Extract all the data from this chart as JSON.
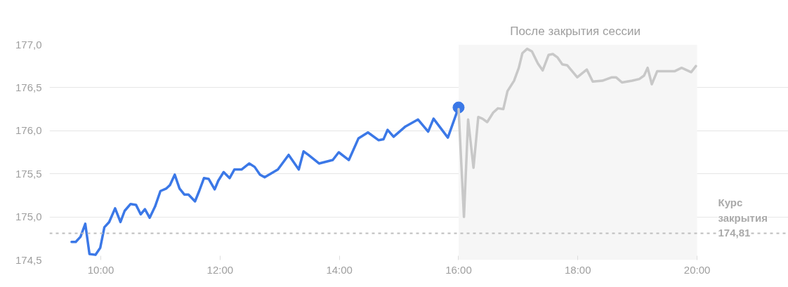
{
  "chart_data": {
    "type": "line",
    "xlim": [
      9.14,
      21.53
    ],
    "ylim": [
      174.5,
      177.0
    ],
    "xticks": [
      {
        "value": 10,
        "label": "10:00"
      },
      {
        "value": 12,
        "label": "12:00"
      },
      {
        "value": 14,
        "label": "14:00"
      },
      {
        "value": 16,
        "label": "16:00"
      },
      {
        "value": 18,
        "label": "18:00"
      },
      {
        "value": 20,
        "label": "20:00"
      }
    ],
    "yticks": [
      {
        "value": 174.5,
        "label": "174,5"
      },
      {
        "value": 175.0,
        "label": "175,0"
      },
      {
        "value": 175.5,
        "label": "175,5"
      },
      {
        "value": 176.0,
        "label": "176,0"
      },
      {
        "value": 176.5,
        "label": "176,5"
      },
      {
        "value": 177.0,
        "label": "177,0"
      }
    ],
    "grid": "y",
    "series": [
      {
        "color": "#3b78e7",
        "x": [
          9.51,
          9.58,
          9.66,
          9.74,
          9.81,
          9.91,
          9.99,
          10.06,
          10.14,
          10.24,
          10.33,
          10.4,
          10.5,
          10.59,
          10.67,
          10.74,
          10.82,
          10.91,
          11.0,
          11.1,
          11.16,
          11.24,
          11.32,
          11.4,
          11.47,
          11.58,
          11.65,
          11.73,
          11.81,
          11.91,
          11.97,
          12.06,
          12.16,
          12.24,
          12.36,
          12.49,
          12.58,
          12.67,
          12.75,
          12.97,
          13.15,
          13.32,
          13.4,
          13.48,
          13.66,
          13.89,
          13.99,
          14.16,
          14.32,
          14.48,
          14.66,
          14.74,
          14.81,
          14.91,
          15.11,
          15.32,
          15.49,
          15.58,
          15.82,
          16.0
        ],
        "values": [
          174.71,
          174.71,
          174.77,
          174.92,
          174.57,
          174.56,
          174.64,
          174.88,
          174.94,
          175.1,
          174.94,
          175.07,
          175.15,
          175.14,
          175.03,
          175.09,
          174.99,
          175.12,
          175.3,
          175.33,
          175.37,
          175.49,
          175.33,
          175.26,
          175.26,
          175.18,
          175.3,
          175.45,
          175.44,
          175.32,
          175.42,
          175.52,
          175.45,
          175.55,
          175.55,
          175.62,
          175.58,
          175.49,
          175.46,
          175.55,
          175.72,
          175.55,
          175.76,
          175.72,
          175.62,
          175.66,
          175.75,
          175.66,
          175.91,
          175.98,
          175.89,
          175.9,
          176.01,
          175.93,
          176.05,
          176.13,
          175.99,
          176.14,
          175.92,
          176.27
        ]
      },
      {
        "type": "scatter",
        "color": "#3b78e7",
        "marker": "circle",
        "x": [
          16.0
        ],
        "values": [
          176.27
        ]
      },
      {
        "color": "#c8c8c8",
        "x": [
          16.0,
          16.09,
          16.16,
          16.25,
          16.33,
          16.4,
          16.48,
          16.58,
          16.66,
          16.75,
          16.82,
          16.93,
          17.01,
          17.07,
          17.15,
          17.23,
          17.33,
          17.41,
          17.51,
          17.58,
          17.66,
          17.74,
          17.82,
          17.99,
          18.15,
          18.25,
          18.41,
          18.57,
          18.64,
          18.74,
          18.91,
          19.03,
          19.11,
          19.17,
          19.24,
          19.33,
          19.62,
          19.74,
          19.9,
          19.98
        ],
        "values": [
          176.25,
          175.0,
          176.13,
          175.57,
          176.16,
          176.14,
          176.1,
          176.21,
          176.26,
          176.25,
          176.46,
          176.58,
          176.73,
          176.9,
          176.95,
          176.92,
          176.78,
          176.7,
          176.88,
          176.89,
          176.85,
          176.77,
          176.76,
          176.62,
          176.71,
          176.57,
          176.58,
          176.62,
          176.62,
          176.56,
          176.58,
          176.6,
          176.64,
          176.73,
          176.54,
          176.69,
          176.69,
          176.73,
          176.68,
          176.75
        ]
      }
    ],
    "ref_lines": [
      {
        "axis": "y",
        "value": 174.81,
        "label": "Курс закрытия 174,81",
        "color": "#bdbdbd",
        "line_style": "dashed"
      }
    ],
    "bands": [
      {
        "axis": "x",
        "from": 16,
        "to": 20,
        "label": "После закрытия сессии",
        "color": "#f6f6f6"
      }
    ]
  }
}
